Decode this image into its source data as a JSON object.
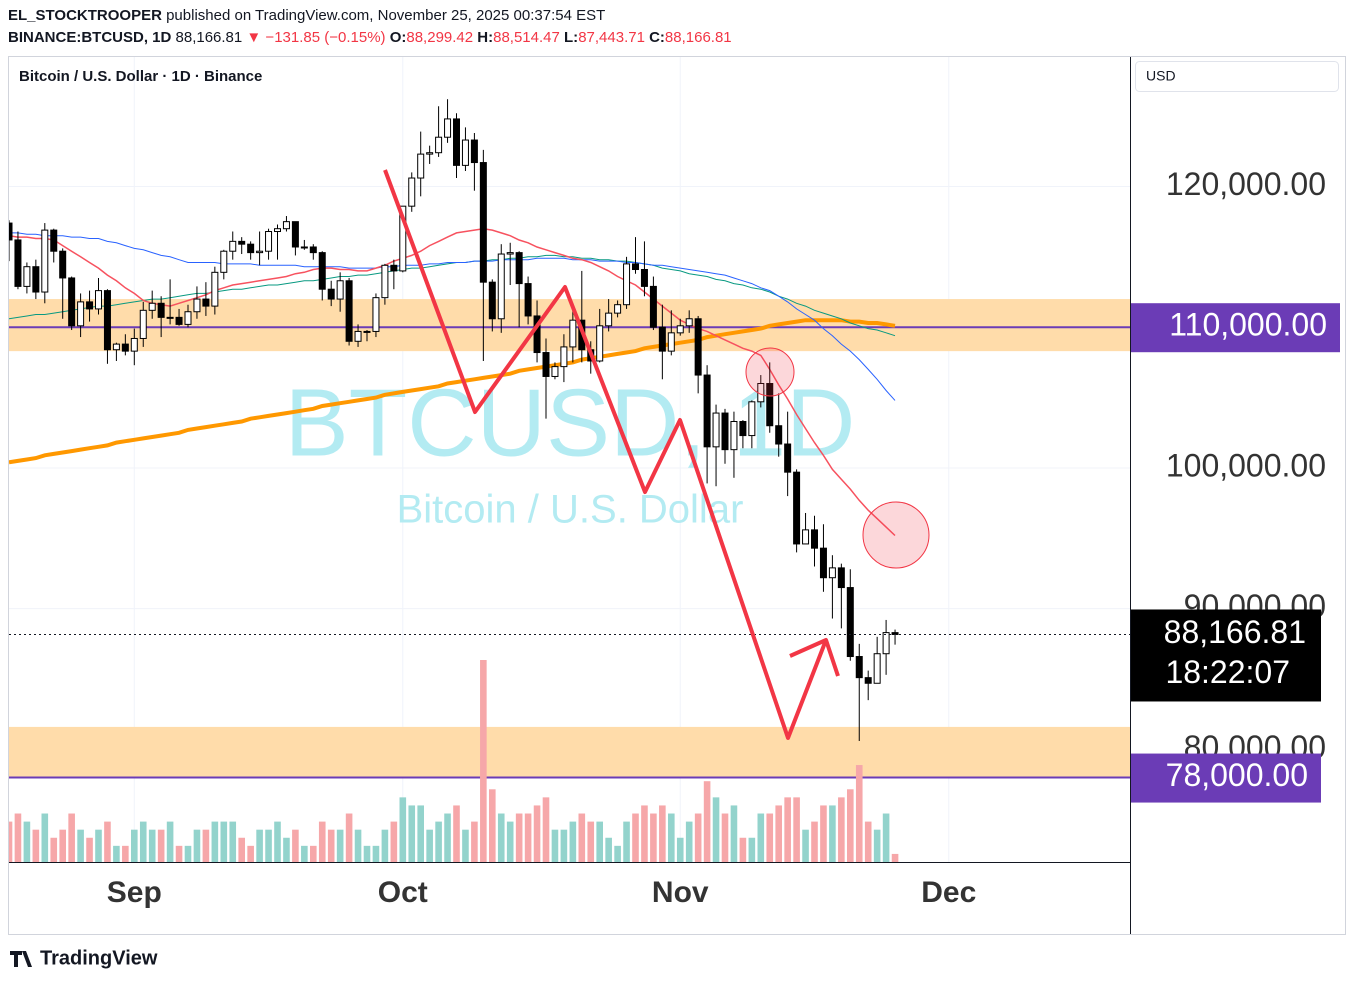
{
  "header": {
    "author": "EL_STOCKTROOPER",
    "published": "published on TradingView.com, November 25, 2025 00:37:54 EST",
    "symbol": "BINANCE:BTCUSD, 1D",
    "price": "88,166.81",
    "change": "▼ −131.85 (−0.15%)",
    "o_key": "O:",
    "o": "88,299.42",
    "h_key": "H:",
    "h": "88,514.47",
    "l_key": "L:",
    "l": "87,443.71",
    "c_key": "C:",
    "c": "88,166.81"
  },
  "footer": {
    "brand": "TradingView"
  },
  "chart_data": {
    "type": "candlestick",
    "legend": "Bitcoin / U.S. Dollar · 1D · Binance",
    "currency": "USD",
    "watermark": "BTCUSD, 1D",
    "watermark_sub": "Bitcoin / U.S. Dollar",
    "categories": [
      null,
      null,
      null,
      null,
      null,
      null,
      null,
      null,
      null,
      null,
      null,
      null,
      null,
      null,
      "Sep",
      null,
      null,
      null,
      null,
      null,
      null,
      null,
      null,
      null,
      null,
      null,
      null,
      null,
      null,
      null,
      null,
      null,
      null,
      null,
      null,
      null,
      null,
      null,
      null,
      null,
      null,
      null,
      null,
      null,
      "Oct",
      null,
      null,
      null,
      null,
      null,
      null,
      null,
      null,
      null,
      null,
      null,
      null,
      null,
      null,
      null,
      null,
      null,
      null,
      null,
      null,
      null,
      null,
      null,
      null,
      null,
      null,
      null,
      null,
      null,
      null,
      "Nov",
      null,
      null,
      null,
      null,
      null,
      null,
      null,
      null,
      null,
      null,
      null,
      null,
      null,
      null,
      null,
      null,
      null,
      null,
      null,
      null,
      null,
      null,
      null,
      null,
      null,
      null,
      null,
      null,
      null,
      "Dec"
    ],
    "open": [
      117400,
      116200,
      112900,
      114300,
      112500,
      116900,
      115400,
      113500,
      110100,
      111800,
      111300,
      112600,
      108400,
      108800,
      108300,
      109200,
      111200,
      111700,
      110700,
      110700,
      110200,
      111100,
      112000,
      111500,
      113900,
      115400,
      116100,
      115900,
      115300,
      115400,
      116800,
      117000,
      117500,
      115700,
      115700,
      115300,
      112700,
      112000,
      113300,
      109000,
      109700,
      109700,
      112100,
      114400,
      114000,
      118600,
      120600,
      122300,
      122400,
      123500,
      124800,
      121500,
      123300,
      121700,
      113200,
      110600,
      115200,
      115300,
      113100,
      110800,
      108200,
      106500,
      107200,
      108600,
      110500,
      108400,
      107600,
      110100,
      111000,
      111600,
      114500,
      114100,
      112900,
      110000,
      108300,
      109600,
      110100,
      110600,
      106600,
      101500,
      103900,
      101300,
      103300,
      102300,
      104700,
      106000,
      103000,
      101700,
      99700,
      94600,
      95600,
      94300,
      92200,
      92900,
      91500,
      86600,
      85100,
      84700,
      86800,
      88299.42,
      null,
      null,
      null,
      null,
      null,
      null
    ],
    "high": [
      117600,
      116800,
      114600,
      114800,
      117400,
      117000,
      115600,
      113600,
      112400,
      112600,
      113500,
      112700,
      108900,
      109500,
      109900,
      111800,
      112600,
      112200,
      113400,
      111300,
      111600,
      112900,
      113200,
      114300,
      115500,
      116800,
      116400,
      116100,
      116800,
      117000,
      117300,
      117900,
      117500,
      116200,
      115900,
      115400,
      113300,
      113900,
      113500,
      110200,
      109800,
      112400,
      114500,
      114800,
      118600,
      121000,
      123900,
      122900,
      125700,
      126200,
      125200,
      124200,
      123800,
      122600,
      113400,
      115900,
      116000,
      115400,
      113600,
      111900,
      109200,
      107500,
      109500,
      111700,
      114000,
      109000,
      111300,
      112000,
      111900,
      115000,
      116400,
      116100,
      113600,
      111600,
      111200,
      110600,
      111200,
      110800,
      107300,
      104500,
      104200,
      104000,
      103400,
      104800,
      106600,
      107500,
      105300,
      104000,
      99900,
      96800,
      96600,
      96000,
      93800,
      93200,
      92800,
      87500,
      85600,
      88000,
      89200,
      88514.47,
      null,
      null,
      null,
      null,
      null,
      null
    ],
    "low": [
      114700,
      112700,
      112400,
      112000,
      111700,
      114600,
      110600,
      109800,
      109300,
      110400,
      110900,
      107400,
      107600,
      108000,
      107300,
      108600,
      110600,
      109300,
      110200,
      110100,
      110000,
      110600,
      110800,
      110900,
      113400,
      114800,
      115200,
      114800,
      114400,
      114800,
      114800,
      116800,
      115100,
      115500,
      114800,
      111900,
      111500,
      111100,
      108700,
      108600,
      109000,
      109300,
      111600,
      112700,
      113900,
      118200,
      119300,
      121600,
      122100,
      123100,
      120600,
      121100,
      119700,
      107600,
      109700,
      109600,
      113000,
      110000,
      110200,
      107500,
      103500,
      106300,
      106100,
      107500,
      107500,
      106700,
      107500,
      109700,
      110700,
      111300,
      113800,
      112200,
      109800,
      106300,
      108000,
      109400,
      109600,
      105300,
      98900,
      98700,
      100300,
      99300,
      101400,
      101400,
      104300,
      102500,
      100800,
      98000,
      94000,
      94600,
      93000,
      91200,
      89300,
      88600,
      86300,
      80600,
      83500,
      84700,
      85300,
      87443.71,
      null,
      null,
      null,
      null,
      null,
      null
    ],
    "close": [
      116200,
      112900,
      114300,
      112500,
      116900,
      115400,
      113500,
      110100,
      111800,
      111300,
      112600,
      108400,
      108800,
      108300,
      109200,
      111200,
      111700,
      110700,
      110700,
      110200,
      111100,
      112000,
      111500,
      113900,
      115400,
      116100,
      115900,
      115300,
      115400,
      116800,
      117000,
      117500,
      115700,
      115700,
      115300,
      112700,
      112000,
      113300,
      109000,
      109700,
      109700,
      112100,
      114400,
      114000,
      118600,
      120600,
      122300,
      122400,
      123500,
      124800,
      121500,
      123300,
      121700,
      113200,
      110600,
      115200,
      115300,
      113100,
      110800,
      108200,
      106500,
      107200,
      108600,
      110500,
      108400,
      107600,
      110100,
      111000,
      111600,
      114500,
      114100,
      112900,
      110000,
      108300,
      109600,
      110100,
      110600,
      106600,
      101500,
      103900,
      101300,
      103300,
      102300,
      104700,
      106000,
      103000,
      101700,
      99700,
      94600,
      95600,
      94300,
      92200,
      92900,
      91500,
      86600,
      85100,
      84700,
      86800,
      88300,
      88166.81,
      null,
      null,
      null,
      null,
      null,
      null
    ],
    "volume": [
      5,
      6,
      5,
      4,
      6,
      3,
      4,
      6,
      4,
      3,
      4,
      5,
      2,
      2,
      4,
      5,
      4,
      4,
      5,
      2,
      2,
      4,
      4,
      5,
      5,
      5,
      3,
      2,
      4,
      4,
      5,
      3,
      4,
      2,
      2,
      5,
      4,
      4,
      6,
      4,
      2,
      2,
      4,
      5,
      8,
      7,
      7,
      4,
      5,
      6,
      7,
      4,
      5,
      25,
      9,
      6,
      5,
      6,
      6,
      7,
      8,
      4,
      4,
      5,
      6,
      5,
      5,
      3,
      2,
      5,
      6,
      7,
      6,
      7,
      6,
      3,
      5,
      6,
      10,
      8,
      6,
      7,
      3,
      3,
      6,
      6,
      7,
      8,
      8,
      4,
      5,
      7,
      7,
      8,
      9,
      12,
      5,
      4,
      6,
      1,
      null,
      null,
      null,
      null,
      null,
      null
    ],
    "up_color": "#ffffff",
    "down_color": "#000000",
    "wick_color": "#000000",
    "volume_up_color": "#93d3cc",
    "volume_down_color": "#f6a7a9",
    "overlays": [
      {
        "color": "#ff9800",
        "width": 4,
        "values": [
          100400,
          100500,
          100600,
          100700,
          100900,
          101000,
          101100,
          101200,
          101300,
          101400,
          101500,
          101600,
          101800,
          101900,
          102000,
          102100,
          102200,
          102300,
          102400,
          102500,
          102700,
          102800,
          102900,
          103000,
          103100,
          103200,
          103300,
          103500,
          103600,
          103700,
          103800,
          103900,
          104000,
          104100,
          104200,
          104400,
          104500,
          104600,
          104700,
          104800,
          104900,
          105000,
          105200,
          105300,
          105400,
          105500,
          105600,
          105700,
          105800,
          106000,
          106100,
          106200,
          106300,
          106400,
          106500,
          106600,
          106700,
          106900,
          107000,
          107100,
          107200,
          107300,
          107400,
          107500,
          107700,
          107800,
          107900,
          108000,
          108100,
          108200,
          108300,
          108500,
          108600,
          108700,
          108800,
          108900,
          109000,
          109100,
          109300,
          109400,
          109500,
          109600,
          109700,
          109800,
          109900,
          110100,
          110200,
          110300,
          110400,
          110500,
          110500,
          110500,
          110500,
          110500,
          110400,
          110400,
          110300,
          110300,
          110200,
          110100,
          null,
          null,
          null,
          null,
          null,
          null
        ]
      },
      {
        "color": "#089981",
        "width": 1,
        "values": [
          110600,
          110700,
          110800,
          110900,
          110900,
          111000,
          111100,
          111200,
          111300,
          111400,
          111500,
          111500,
          111600,
          111700,
          111800,
          111900,
          112000,
          112000,
          112100,
          112200,
          112300,
          112400,
          112400,
          112500,
          112600,
          112700,
          112700,
          112800,
          112900,
          113000,
          113000,
          113100,
          113200,
          113300,
          113300,
          113400,
          113500,
          113600,
          113600,
          113700,
          113700,
          113800,
          113900,
          114000,
          114100,
          114200,
          114200,
          114300,
          114400,
          114500,
          114600,
          114600,
          114700,
          114700,
          114800,
          114800,
          114900,
          114900,
          115000,
          115000,
          115100,
          115100,
          115000,
          115000,
          114900,
          114900,
          114800,
          114800,
          114700,
          114700,
          114600,
          114500,
          114400,
          114200,
          114100,
          114000,
          113800,
          113700,
          113600,
          113400,
          113300,
          113100,
          113000,
          112800,
          112700,
          112500,
          112200,
          112000,
          111700,
          111500,
          111200,
          111000,
          110800,
          110600,
          110300,
          110100,
          109900,
          109800,
          109600,
          109400,
          null,
          null,
          null,
          null,
          null,
          null
        ]
      },
      {
        "color": "#2962ff",
        "width": 1,
        "values": [
          116700,
          116700,
          116600,
          116600,
          116500,
          116500,
          116500,
          116400,
          116400,
          116300,
          116300,
          116100,
          116000,
          115800,
          115600,
          115500,
          115300,
          115100,
          115000,
          114800,
          114600,
          114600,
          114600,
          114600,
          114500,
          114500,
          114500,
          114500,
          114400,
          114400,
          114400,
          114400,
          114400,
          114300,
          114300,
          114300,
          114300,
          114300,
          114200,
          114200,
          114200,
          114200,
          114300,
          114300,
          114400,
          114400,
          114400,
          114500,
          114500,
          114600,
          114600,
          114600,
          114700,
          114700,
          114700,
          114800,
          114800,
          114800,
          114800,
          114900,
          114900,
          114900,
          114900,
          114800,
          114800,
          114800,
          114700,
          114700,
          114700,
          114600,
          114600,
          114500,
          114400,
          114400,
          114300,
          114200,
          114100,
          114000,
          113900,
          113800,
          113700,
          113500,
          113300,
          113100,
          112800,
          112600,
          112200,
          111800,
          111300,
          110900,
          110500,
          109900,
          109400,
          108800,
          108300,
          107700,
          107000,
          106300,
          105500,
          104800,
          null,
          null,
          null,
          null,
          null,
          null
        ]
      },
      {
        "color": "#f7525f",
        "width": 1.5,
        "values": [
          116500,
          116400,
          116400,
          116300,
          116300,
          116200,
          115800,
          115400,
          115000,
          114600,
          114200,
          113700,
          113300,
          112800,
          112400,
          111900,
          111700,
          111600,
          111500,
          111700,
          111900,
          112100,
          112300,
          112600,
          112800,
          113000,
          113100,
          113200,
          113300,
          113400,
          113500,
          113600,
          113800,
          113900,
          114100,
          114200,
          114200,
          114100,
          114100,
          114000,
          114000,
          114200,
          114400,
          114700,
          114900,
          115100,
          115400,
          115800,
          116100,
          116400,
          116700,
          116800,
          116900,
          117000,
          116900,
          116700,
          116500,
          116200,
          116000,
          115700,
          115500,
          115300,
          115100,
          114900,
          114800,
          114600,
          114300,
          114000,
          113600,
          113300,
          113000,
          112500,
          112000,
          111500,
          111000,
          110500,
          110200,
          109900,
          109700,
          109400,
          109100,
          108800,
          108500,
          108300,
          108000,
          107000,
          105900,
          104900,
          103800,
          102800,
          101800,
          100900,
          99900,
          99200,
          98500,
          97700,
          97000,
          96400,
          95800,
          95200,
          null,
          null,
          null,
          null,
          null,
          null
        ]
      }
    ],
    "zones": [
      {
        "from": 108300,
        "to": 112000,
        "color": "#ffdcaa"
      },
      {
        "from": 78000,
        "to": 81600,
        "color": "#ffdcaa"
      }
    ],
    "levels": [
      {
        "value": 110000,
        "label": "110,000.00",
        "color": "#6b3cb6"
      },
      {
        "value": 78000,
        "label": "78,000.00",
        "color": "#6b3cb6"
      }
    ],
    "last_price_label": "88,166.81",
    "countdown": "18:22:07",
    "ylim": [
      72000,
      129200
    ],
    "yticks": [
      {
        "value": 80000,
        "label": "80,000.00"
      },
      {
        "value": 90000,
        "label": "90,000.00"
      },
      {
        "value": 100000,
        "label": "100,000.00"
      },
      {
        "value": 120000,
        "label": "120,000.00"
      }
    ],
    "grid": true
  }
}
